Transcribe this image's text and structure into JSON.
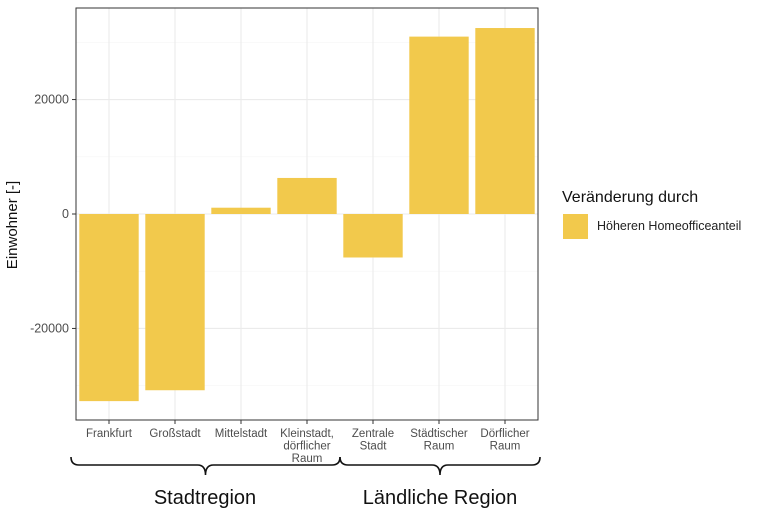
{
  "chart_data": {
    "type": "bar",
    "categories": [
      "Frankfurt",
      "Großstadt",
      "Mittelstadt",
      "Kleinstadt, dörflicher Raum",
      "Zentrale Stadt",
      "Städtischer Raum",
      "Dörflicher Raum"
    ],
    "category_lines": [
      [
        "Frankfurt"
      ],
      [
        "Großstadt"
      ],
      [
        "Mittelstadt"
      ],
      [
        "Kleinstadt,",
        "dörflicher",
        "Raum"
      ],
      [
        "Zentrale",
        "Stadt"
      ],
      [
        "Städtischer",
        "Raum"
      ],
      [
        "Dörflicher",
        "Raum"
      ]
    ],
    "series": [
      {
        "name": "Höheren Homeofficeanteil",
        "values": [
          -32700,
          -30800,
          1100,
          6300,
          -7600,
          31000,
          32500
        ]
      }
    ],
    "ylabel": "Einwohner [-]",
    "xlabel": "",
    "ylim": [
      -36000,
      36000
    ],
    "yticks": [
      -20000,
      0,
      20000
    ],
    "ytick_labels": [
      "-20000",
      "0",
      "20000"
    ],
    "grid": true,
    "legend": {
      "title": "Veränderung durch",
      "position": "right"
    },
    "groups": [
      {
        "label": "Stadtregion",
        "categories": [
          "Frankfurt",
          "Großstadt",
          "Mittelstadt",
          "Kleinstadt, dörflicher Raum"
        ]
      },
      {
        "label": "Ländliche Region",
        "categories": [
          "Zentrale Stadt",
          "Städtischer Raum",
          "Dörflicher Raum"
        ]
      }
    ]
  },
  "colors": {
    "bar": "#f2c94c",
    "panel_border": "#333333",
    "grid_major": "#ebebeb",
    "grid_minor": "#f5f5f5"
  }
}
